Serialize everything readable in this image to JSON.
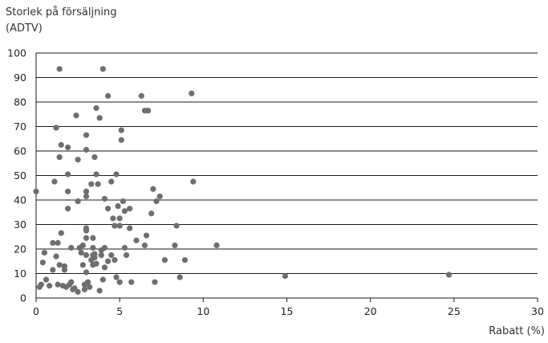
{
  "chart_data": {
    "type": "scatter",
    "ylabel_lines": [
      "Storlek på försäljning",
      "(ADTV)"
    ],
    "xlabel": "Rabatt (%)",
    "xlim": [
      0,
      30
    ],
    "ylim": [
      0,
      100
    ],
    "xticks": [
      0,
      5,
      10,
      15,
      20,
      25,
      30
    ],
    "yticks": [
      0,
      10,
      20,
      30,
      40,
      50,
      60,
      70,
      80,
      90,
      100
    ],
    "grid": "horizontal",
    "marker_color": "#6e6e6e",
    "points": [
      [
        0.0,
        43.5
      ],
      [
        0.2,
        4.5
      ],
      [
        0.3,
        5.5
      ],
      [
        0.4,
        14.5
      ],
      [
        0.5,
        18.5
      ],
      [
        0.6,
        7.5
      ],
      [
        0.8,
        5.0
      ],
      [
        1.0,
        11.5
      ],
      [
        1.0,
        22.5
      ],
      [
        1.1,
        47.5
      ],
      [
        1.2,
        69.5
      ],
      [
        1.2,
        17.0
      ],
      [
        1.3,
        22.5
      ],
      [
        1.3,
        5.5
      ],
      [
        1.4,
        13.5
      ],
      [
        1.4,
        57.5
      ],
      [
        1.4,
        93.5
      ],
      [
        1.5,
        26.5
      ],
      [
        1.5,
        62.5
      ],
      [
        1.6,
        5.0
      ],
      [
        1.7,
        11.5
      ],
      [
        1.7,
        13.0
      ],
      [
        1.8,
        4.5
      ],
      [
        1.9,
        36.5
      ],
      [
        1.9,
        61.5
      ],
      [
        1.9,
        43.5
      ],
      [
        1.9,
        50.5
      ],
      [
        2.0,
        5.5
      ],
      [
        2.1,
        20.5
      ],
      [
        2.1,
        6.5
      ],
      [
        2.2,
        3.5
      ],
      [
        2.3,
        4.0
      ],
      [
        2.4,
        74.5
      ],
      [
        2.5,
        2.5
      ],
      [
        2.5,
        39.5
      ],
      [
        2.5,
        56.5
      ],
      [
        2.6,
        20.5
      ],
      [
        2.7,
        18.5
      ],
      [
        2.8,
        13.5
      ],
      [
        2.8,
        21.5
      ],
      [
        2.9,
        5.5
      ],
      [
        2.9,
        3.5
      ],
      [
        3.0,
        17.5
      ],
      [
        3.0,
        24.5
      ],
      [
        3.0,
        27.5
      ],
      [
        3.0,
        10.5
      ],
      [
        3.0,
        28.5
      ],
      [
        3.0,
        43.5
      ],
      [
        3.0,
        41.5
      ],
      [
        3.0,
        60.5
      ],
      [
        3.0,
        66.5
      ],
      [
        3.1,
        6.5
      ],
      [
        3.2,
        4.5
      ],
      [
        3.3,
        46.5
      ],
      [
        3.3,
        15.5
      ],
      [
        3.4,
        13.5
      ],
      [
        3.4,
        17.5
      ],
      [
        3.4,
        20.5
      ],
      [
        3.4,
        24.5
      ],
      [
        3.5,
        57.5
      ],
      [
        3.5,
        16.5
      ],
      [
        3.5,
        18.0
      ],
      [
        3.6,
        77.5
      ],
      [
        3.6,
        14.0
      ],
      [
        3.6,
        50.5
      ],
      [
        3.7,
        46.5
      ],
      [
        3.8,
        73.5
      ],
      [
        3.8,
        3.0
      ],
      [
        3.9,
        19.5
      ],
      [
        3.9,
        17.5
      ],
      [
        4.0,
        7.5
      ],
      [
        4.0,
        93.5
      ],
      [
        4.1,
        40.5
      ],
      [
        4.1,
        12.5
      ],
      [
        4.1,
        20.5
      ],
      [
        4.3,
        36.5
      ],
      [
        4.3,
        82.5
      ],
      [
        4.3,
        15.0
      ],
      [
        4.5,
        17.5
      ],
      [
        4.5,
        47.5
      ],
      [
        4.6,
        32.5
      ],
      [
        4.7,
        29.5
      ],
      [
        4.7,
        15.5
      ],
      [
        4.8,
        50.5
      ],
      [
        4.8,
        8.5
      ],
      [
        4.9,
        37.5
      ],
      [
        5.0,
        29.5
      ],
      [
        5.0,
        32.5
      ],
      [
        5.0,
        6.5
      ],
      [
        5.1,
        68.5
      ],
      [
        5.1,
        64.5
      ],
      [
        5.2,
        39.5
      ],
      [
        5.3,
        35.5
      ],
      [
        5.3,
        20.5
      ],
      [
        5.4,
        17.5
      ],
      [
        5.6,
        36.5
      ],
      [
        5.6,
        28.5
      ],
      [
        5.7,
        6.5
      ],
      [
        6.0,
        23.5
      ],
      [
        6.3,
        82.5
      ],
      [
        6.5,
        21.5
      ],
      [
        6.5,
        76.5
      ],
      [
        6.6,
        25.5
      ],
      [
        6.7,
        76.5
      ],
      [
        6.9,
        34.5
      ],
      [
        7.0,
        44.5
      ],
      [
        7.1,
        6.5
      ],
      [
        7.2,
        39.5
      ],
      [
        7.4,
        41.5
      ],
      [
        7.7,
        15.5
      ],
      [
        8.3,
        21.5
      ],
      [
        8.4,
        29.5
      ],
      [
        8.6,
        8.5
      ],
      [
        8.9,
        15.5
      ],
      [
        9.3,
        83.5
      ],
      [
        9.4,
        47.5
      ],
      [
        10.8,
        21.5
      ],
      [
        14.9,
        9.0
      ],
      [
        24.7,
        9.5
      ]
    ]
  }
}
